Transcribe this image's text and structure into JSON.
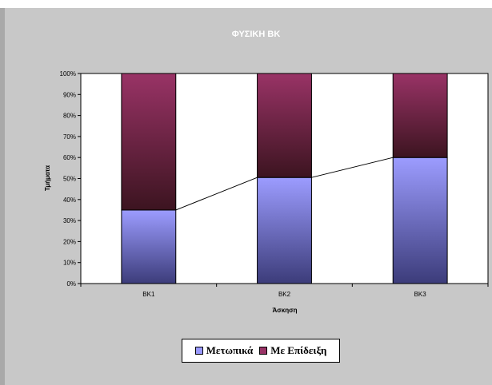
{
  "chart_data": {
    "type": "bar",
    "stacked": true,
    "title": "ΦΥΣΙΚΗ ΒΚ",
    "xlabel": "Άσκηση",
    "ylabel": "Τμήματα",
    "categories": [
      "BK1",
      "BK2",
      "BK3"
    ],
    "y_ticks": [
      "0%",
      "10%",
      "20%",
      "30%",
      "40%",
      "50%",
      "60%",
      "70%",
      "80%",
      "90%",
      "100%"
    ],
    "ylim": [
      0,
      100
    ],
    "series": [
      {
        "name": "Μετωπικά",
        "values": [
          35,
          50.5,
          60
        ],
        "color": "#9999ff"
      },
      {
        "name": "Με Επίδειξη",
        "values": [
          65,
          49.5,
          40
        ],
        "color": "#993366"
      }
    ],
    "trend_line": "connects tops of Μετωπικά segments",
    "legend_position": "bottom"
  },
  "colors": {
    "panel": "#c8c8c8",
    "plot_area": "#ffffff",
    "title_text": "#ffffff"
  }
}
